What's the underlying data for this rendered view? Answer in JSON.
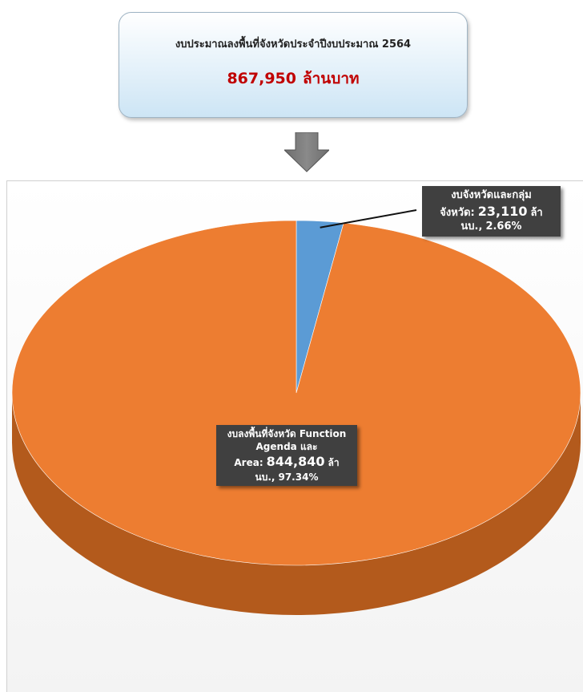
{
  "header": {
    "title": "งบประมาณลงพื้นที่จังหวัดประจำปีงบประมาณ 2564",
    "total": "867,950",
    "unit": "ล้านบาท"
  },
  "chart_data": {
    "type": "pie",
    "categories": [
      "งบจังหวัดและกลุ่มจังหวัด",
      "งบลงพื้นที่จังหวัด Function Agenda และ Area"
    ],
    "values": [
      23110,
      844840
    ],
    "value_labels": [
      "23,110",
      "844,840"
    ],
    "unit": "ล้านบ.",
    "percent_labels": [
      "2.66%",
      "97.34%"
    ],
    "name_separator": ":",
    "value_separator": ",",
    "colors": [
      "#5b9bd5",
      "#ed7d31"
    ],
    "side_colors": [
      "#3f7bb3",
      "#b35a1c"
    ]
  }
}
